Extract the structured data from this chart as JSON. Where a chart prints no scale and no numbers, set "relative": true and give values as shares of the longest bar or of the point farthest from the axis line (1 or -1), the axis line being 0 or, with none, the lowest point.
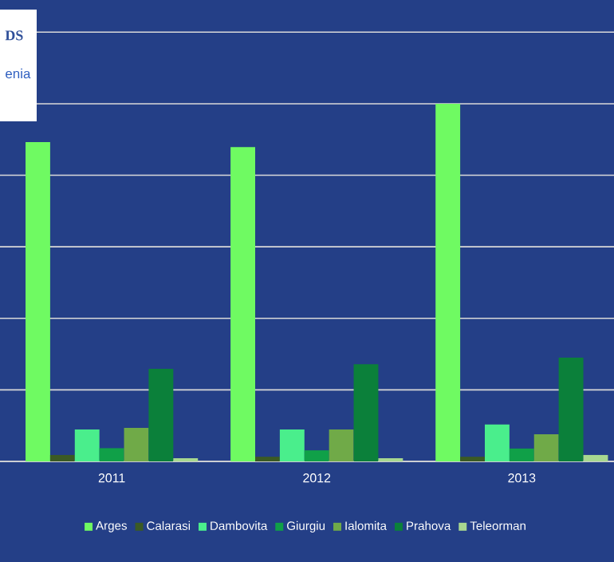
{
  "chart_data": {
    "type": "bar",
    "title": "DS",
    "subtitle": "enia",
    "relative": true,
    "grid": "y",
    "legend": "bottom",
    "categories": [
      "2011",
      "2012",
      "2013"
    ],
    "series": [
      {
        "name": "Arges",
        "color": "#6ffa62",
        "values": [
          0.893,
          0.879,
          1
        ]
      },
      {
        "name": "Calarasi",
        "color": "#3b5a24",
        "values": [
          0.018,
          0.013,
          0.013
        ]
      },
      {
        "name": "Dambovita",
        "color": "#4aee8c",
        "values": [
          0.089,
          0.089,
          0.103
        ]
      },
      {
        "name": "Giurgiu",
        "color": "#10a048",
        "values": [
          0.037,
          0.031,
          0.036
        ]
      },
      {
        "name": "Ialomita",
        "color": "#70aa48",
        "values": [
          0.094,
          0.089,
          0.076
        ]
      },
      {
        "name": "Prahova",
        "color": "#0b803a",
        "values": [
          0.259,
          0.272,
          0.29
        ]
      },
      {
        "name": "Teleorman",
        "color": "#a8d890",
        "values": [
          0.009,
          0.009,
          0.018
        ]
      }
    ]
  }
}
